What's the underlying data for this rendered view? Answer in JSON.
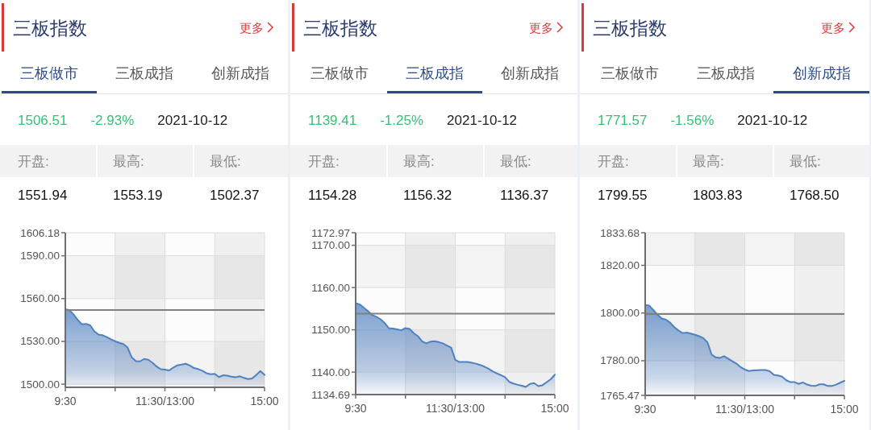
{
  "chart_data": [
    {
      "type": "area",
      "title": "三板指数",
      "annotations": [
        "更多",
        "三板做市",
        "三板成指",
        "创新成指",
        "1506.51",
        "-2.93%",
        "2021-10-12",
        "开盘:",
        "最高:",
        "最低:",
        "1551.94",
        "1553.19",
        "1502.37"
      ],
      "categories": [
        "9:30",
        null,
        null,
        null,
        null,
        null,
        null,
        null,
        null,
        null,
        null,
        null,
        null,
        null,
        null,
        null,
        null,
        null,
        null,
        null,
        null,
        null,
        null,
        null,
        "11:30/13:00",
        null,
        null,
        null,
        null,
        null,
        null,
        null,
        null,
        null,
        null,
        null,
        null,
        null,
        null,
        null,
        null,
        null,
        null,
        null,
        null,
        null,
        null,
        null,
        "15:00"
      ],
      "series": [
        {
          "color": "#4f80c0",
          "values": [
            1552.5,
            1551.9,
            1548.8,
            1545.0,
            1542.0,
            1542.3,
            1541.3,
            1537.0,
            1534.8,
            1534.3,
            1533.0,
            1531.4,
            1530.2,
            1529.0,
            1528.1,
            1525.7,
            1518.8,
            1516.1,
            1516.0,
            1517.7,
            1517.1,
            1515.0,
            1512.4,
            1510.5,
            1510.2,
            1509.6,
            1511.6,
            1513.2,
            1513.7,
            1514.3,
            1513.1,
            1511.3,
            1510.6,
            1509.4,
            1507.7,
            1507.0,
            1507.3,
            1505.0,
            1506.2,
            1506.0,
            1505.3,
            1504.8,
            1505.6,
            1504.4,
            1503.6,
            1504.0,
            1506.4,
            1509.2,
            1506.5
          ]
        }
      ],
      "ylim": [
        1497.8,
        1606.18
      ],
      "yticks": [
        {
          "value": 1500,
          "label": "1500.00"
        },
        {
          "value": 1530,
          "label": "1530.00"
        },
        {
          "value": 1560,
          "label": "1560.00"
        },
        {
          "value": 1590,
          "label": "1590.00"
        },
        {
          "value": 1606.18,
          "label": "1606.18"
        }
      ],
      "ref_lines": [
        {
          "axis": "y",
          "value": 1551.98,
          "color": "#808080"
        }
      ],
      "grid": true
    },
    {
      "type": "area",
      "title": "三板指数",
      "annotations": [
        "更多",
        "三板做市",
        "三板成指",
        "创新成指",
        "1139.41",
        "-1.25%",
        "2021-10-12",
        "开盘:",
        "最高:",
        "最低:",
        "1154.28",
        "1156.32",
        "1136.37"
      ],
      "categories": [
        "9:30",
        null,
        null,
        null,
        null,
        null,
        null,
        null,
        null,
        null,
        null,
        null,
        null,
        null,
        null,
        null,
        null,
        null,
        null,
        null,
        null,
        null,
        null,
        null,
        "11:30/13:00",
        null,
        null,
        null,
        null,
        null,
        null,
        null,
        null,
        null,
        null,
        null,
        null,
        null,
        null,
        null,
        null,
        null,
        null,
        null,
        null,
        null,
        null,
        null,
        "15:00"
      ],
      "series": [
        {
          "color": "#4f80c0",
          "values": [
            1156.3,
            1156.0,
            1155.2,
            1154.4,
            1153.5,
            1153.1,
            1152.5,
            1151.6,
            1150.4,
            1150.3,
            1150.1,
            1149.9,
            1150.4,
            1150.2,
            1149.2,
            1148.5,
            1147.3,
            1146.8,
            1147.2,
            1147.3,
            1147.1,
            1146.8,
            1146.3,
            1145.8,
            1142.9,
            1142.4,
            1142.4,
            1142.4,
            1142.2,
            1142.0,
            1141.7,
            1141.3,
            1140.8,
            1140.2,
            1139.7,
            1139.3,
            1138.8,
            1137.7,
            1137.3,
            1137.0,
            1136.8,
            1136.5,
            1137.2,
            1137.4,
            1136.7,
            1136.9,
            1137.6,
            1138.3,
            1139.4
          ]
        }
      ],
      "ylim": [
        1134.69,
        1172.97
      ],
      "yticks": [
        {
          "value": 1134.69,
          "label": "1134.69"
        },
        {
          "value": 1140,
          "label": "1140.00"
        },
        {
          "value": 1150,
          "label": "1150.00"
        },
        {
          "value": 1160,
          "label": "1160.00"
        },
        {
          "value": 1170,
          "label": "1170.00"
        },
        {
          "value": 1172.97,
          "label": "1172.97"
        }
      ],
      "ref_lines": [
        {
          "axis": "y",
          "value": 1153.83,
          "color": "#808080"
        }
      ],
      "grid": true
    },
    {
      "type": "area",
      "title": "三板指数",
      "annotations": [
        "更多",
        "三板做市",
        "三板成指",
        "创新成指",
        "1771.57",
        "-1.56%",
        "2021-10-12",
        "开盘:",
        "最高:",
        "最低:",
        "1799.55",
        "1803.83",
        "1768.50"
      ],
      "categories": [
        "9:30",
        null,
        null,
        null,
        null,
        null,
        null,
        null,
        null,
        null,
        null,
        null,
        null,
        null,
        null,
        null,
        null,
        null,
        null,
        null,
        null,
        null,
        null,
        null,
        "11:30/13:00",
        null,
        null,
        null,
        null,
        null,
        null,
        null,
        null,
        null,
        null,
        null,
        null,
        null,
        null,
        null,
        null,
        null,
        null,
        null,
        null,
        null,
        null,
        null,
        "15:00"
      ],
      "series": [
        {
          "color": "#4f80c0",
          "values": [
            1803.4,
            1803.1,
            1801.2,
            1799.2,
            1797.7,
            1797.2,
            1796.0,
            1794.1,
            1792.7,
            1791.6,
            1791.8,
            1791.4,
            1790.9,
            1790.3,
            1789.5,
            1787.7,
            1782.6,
            1781.4,
            1781.2,
            1781.9,
            1780.9,
            1779.8,
            1778.8,
            1777.3,
            1776.3,
            1775.7,
            1775.9,
            1776.0,
            1776.1,
            1776.1,
            1775.6,
            1774.1,
            1773.8,
            1773.3,
            1771.8,
            1771.0,
            1771.0,
            1770.3,
            1770.9,
            1770.0,
            1769.5,
            1769.4,
            1770.1,
            1770.1,
            1769.4,
            1769.4,
            1770.0,
            1770.8,
            1771.6
          ]
        }
      ],
      "ylim": [
        1765.47,
        1833.68
      ],
      "yticks": [
        {
          "value": 1765.47,
          "label": "1765.47"
        },
        {
          "value": 1780,
          "label": "1780.00"
        },
        {
          "value": 1800,
          "label": "1800.00"
        },
        {
          "value": 1820,
          "label": "1820.00"
        },
        {
          "value": 1833.68,
          "label": "1833.68"
        }
      ],
      "ref_lines": [
        {
          "axis": "y",
          "value": 1799.58,
          "color": "#808080"
        }
      ],
      "grid": true
    }
  ]
}
